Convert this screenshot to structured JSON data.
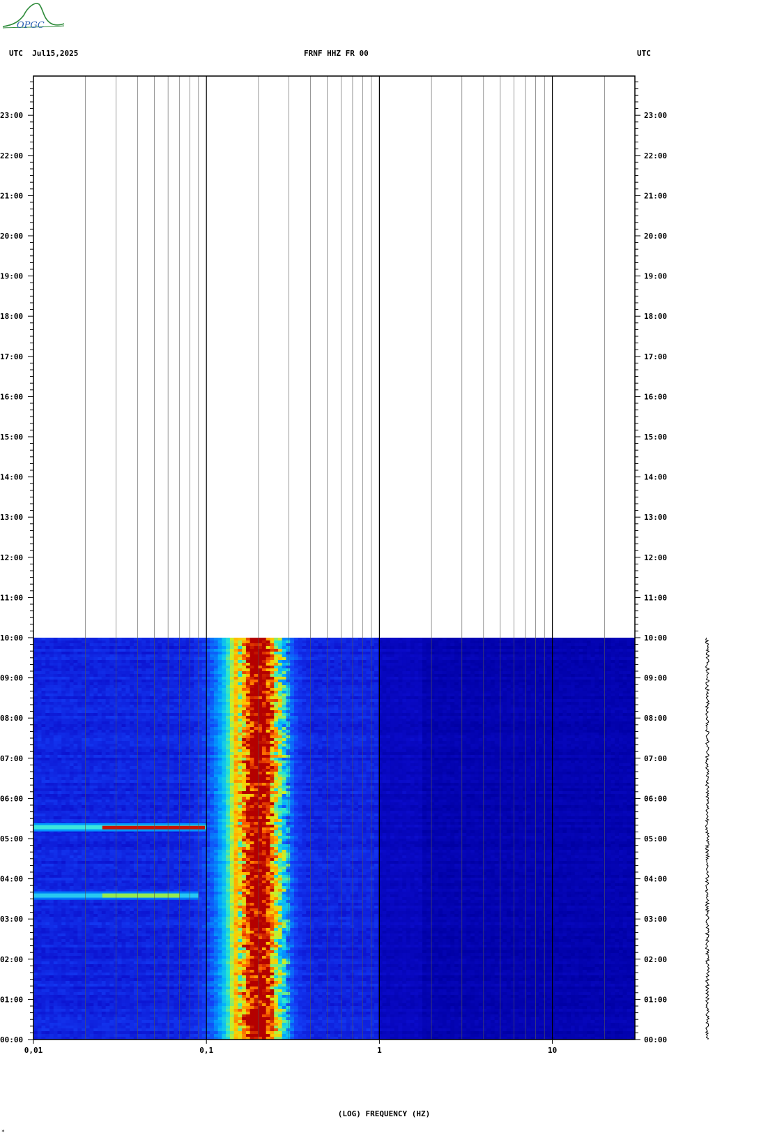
{
  "header": {
    "left_label": "UTC  Jul15,2025",
    "center_label": "FRNF HHZ FR 00",
    "right_label": "UTC",
    "logo_text": "OPGC"
  },
  "chart_data": {
    "type": "heatmap",
    "title": "FRNF HHZ FR 00",
    "date": "Jul15,2025",
    "xlabel": "(LOG) FREQUENCY (HZ)",
    "ylabel": "UTC",
    "x_scale": "log",
    "xlim": [
      0.01,
      30
    ],
    "x_ticks": [
      "0.01",
      "0.1",
      "1",
      "10"
    ],
    "y_ticks": [
      "00:00",
      "01:00",
      "02:00",
      "03:00",
      "04:00",
      "05:00",
      "06:00",
      "07:00",
      "08:00",
      "09:00",
      "10:00",
      "11:00",
      "12:00",
      "13:00",
      "14:00",
      "15:00",
      "16:00",
      "17:00",
      "18:00",
      "19:00",
      "20:00",
      "21:00",
      "22:00",
      "23:00"
    ],
    "ylim_hours": [
      0,
      24
    ],
    "data_end_hour": 10.0,
    "microseism_band_hz": [
      0.15,
      0.3
    ],
    "peak_band_hz": [
      0.17,
      0.23
    ],
    "transient_events": [
      {
        "time": "05:17",
        "freq_hz": [
          0.01,
          0.1
        ]
      },
      {
        "time": "03:35",
        "freq_hz": [
          0.01,
          0.09
        ]
      }
    ],
    "colors": {
      "background_noise": "#0a0ac8",
      "high_freq_noise": "#0000a5",
      "peak": "#b40000",
      "gridline": "#000000"
    },
    "grid": true
  },
  "footer": {
    "corner_mark": "*"
  }
}
